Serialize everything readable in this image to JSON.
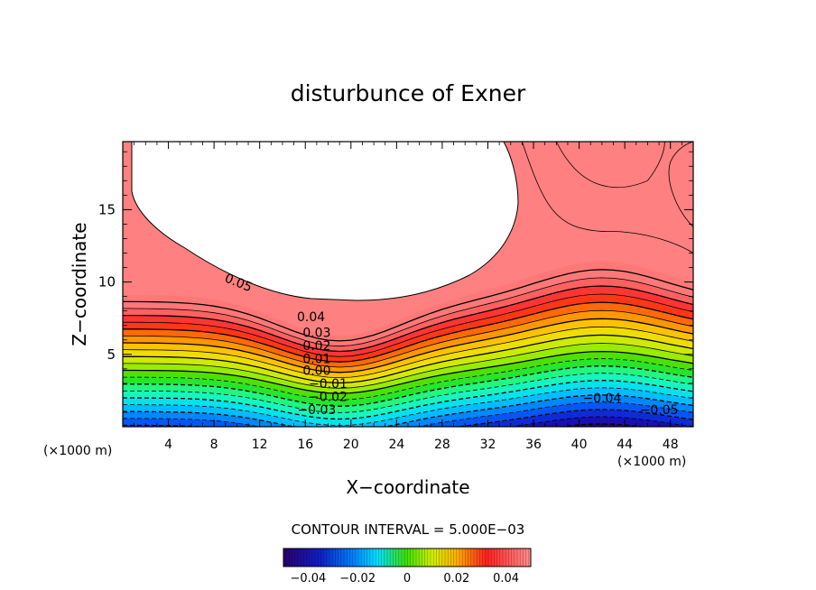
{
  "chart_data": {
    "type": "contour",
    "title": "disturbunce of Exner",
    "xlabel": "X−coordinate",
    "ylabel": "Z−coordinate",
    "x_unit_label": "(×1000 m)",
    "xlim": [
      0,
      50
    ],
    "ylim": [
      0,
      19.7
    ],
    "xticks": [
      "4",
      "8",
      "12",
      "16",
      "20",
      "24",
      "28",
      "32",
      "36",
      "40",
      "44",
      "48"
    ],
    "yticks": [
      "5",
      "10",
      "15"
    ],
    "contour_interval_text": "CONTOUR INTERVAL = 5.000E−03",
    "contour_labels": [
      {
        "text": "0.05",
        "x": 10,
        "z": 10
      },
      {
        "text": "0.04",
        "x": 16.5,
        "z": 7.6
      },
      {
        "text": "0.03",
        "x": 17,
        "z": 6.5
      },
      {
        "text": "0.02",
        "x": 17,
        "z": 5.6
      },
      {
        "text": "0.01",
        "x": 17,
        "z": 4.7
      },
      {
        "text": "0.00",
        "x": 17,
        "z": 3.9
      },
      {
        "text": "−0.01",
        "x": 18,
        "z": 3.0
      },
      {
        "text": "−0.02",
        "x": 18,
        "z": 2.1
      },
      {
        "text": "−0.03",
        "x": 17,
        "z": 1.2
      },
      {
        "text": "−0.04",
        "x": 42,
        "z": 2.0
      },
      {
        "text": "−0.05",
        "x": 47,
        "z": 1.2
      }
    ],
    "colorbar": {
      "range": [
        -0.05,
        0.05
      ],
      "tick_labels": [
        "−0.04",
        "−0.02",
        "0",
        "0.02",
        "0.04"
      ],
      "tick_values": [
        -0.04,
        -0.02,
        0,
        0.02,
        0.04
      ]
    },
    "palette": [
      "#2a006e",
      "#1020c8",
      "#0070ff",
      "#00d8ff",
      "#20ff90",
      "#40e000",
      "#c8f000",
      "#ffd800",
      "#ff8000",
      "#ff2020",
      "#ff7070",
      "#ffffff"
    ]
  }
}
